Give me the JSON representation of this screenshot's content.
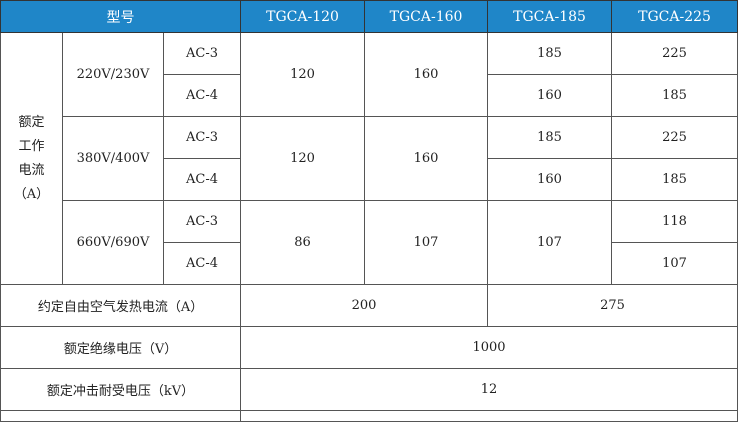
{
  "header": {
    "model": "型号",
    "models": [
      "TGCA-120",
      "TGCA-160",
      "TGCA-185",
      "TGCA-225"
    ],
    "color": "#1f86c8"
  },
  "rated_current": {
    "label": [
      "额定",
      "工作",
      "电流",
      "（A）"
    ],
    "groups": [
      {
        "voltage": "220V/230V",
        "ac3": "AC-3",
        "ac4": "AC-4",
        "m120": "120",
        "m160": "160",
        "m185_ac3": "185",
        "m185_ac4": "160",
        "m225_ac3": "225",
        "m225_ac4": "185"
      },
      {
        "voltage": "380V/400V",
        "ac3": "AC-3",
        "ac4": "AC-4",
        "m120": "120",
        "m160": "160",
        "m185_ac3": "185",
        "m185_ac4": "160",
        "m225_ac3": "225",
        "m225_ac4": "185"
      },
      {
        "voltage": "660V/690V",
        "ac3": "AC-3",
        "ac4": "AC-4",
        "m120": "86",
        "m160": "107",
        "m185": "107",
        "m225_ac3": "118",
        "m225_ac4": "107"
      }
    ]
  },
  "thermal_current": {
    "label": "约定自由空气发热电流（A）",
    "v1": "200",
    "v2": "275"
  },
  "insulation_voltage": {
    "label": "额定绝缘电压（V）",
    "value": "1000"
  },
  "impulse_voltage": {
    "label": "额定冲击耐受电压（kV）",
    "value": "12"
  }
}
